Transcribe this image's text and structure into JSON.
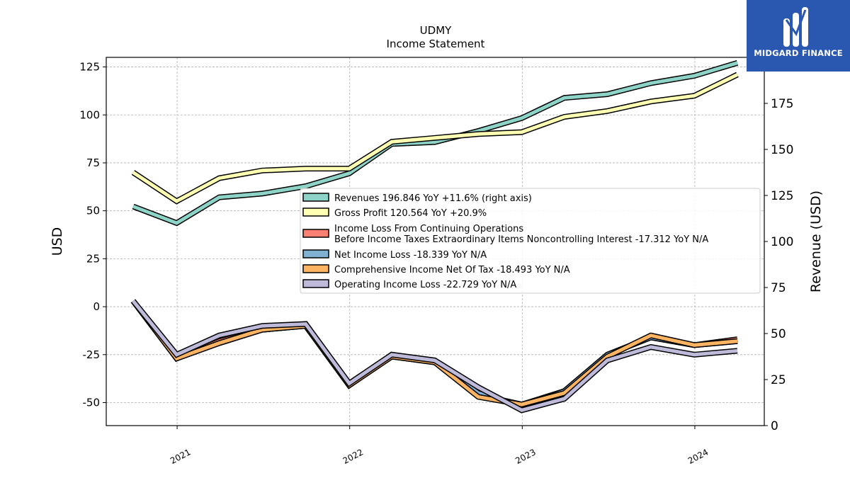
{
  "brand": {
    "name": "MIDGARD FINANCE",
    "color": "#2a57b0"
  },
  "chart_data": {
    "type": "line",
    "title": "UDMY",
    "subtitle": "Income Statement",
    "ylabel": "USD",
    "ylabel_right": "Revenue (USD)",
    "x": [
      "2020-09-30",
      "2020-12-31",
      "2021-03-31",
      "2021-06-30",
      "2021-09-30",
      "2021-12-31",
      "2022-03-31",
      "2022-06-30",
      "2022-09-30",
      "2022-12-31",
      "2023-03-31",
      "2023-06-30",
      "2023-09-30",
      "2023-12-31",
      "2024-03-31"
    ],
    "xticks": [
      "2021",
      "2022",
      "2023",
      "2024"
    ],
    "ylim": [
      -62,
      130
    ],
    "ylim_right": [
      0,
      200
    ],
    "yticks": [
      -50,
      -25,
      0,
      25,
      50,
      75,
      100,
      125
    ],
    "yticks_right": [
      0,
      25,
      50,
      75,
      100,
      125,
      150,
      175
    ],
    "grid": true,
    "legend_position": "center-right",
    "series": [
      {
        "name": "Revenues",
        "legend": "Revenues  196.846 YoY +11.6% (right axis)",
        "axis": "right",
        "color": "#8dd3c7",
        "values": [
          119,
          110,
          124,
          126,
          130,
          137,
          153,
          154,
          160,
          167,
          178,
          180,
          186,
          190,
          197
        ]
      },
      {
        "name": "Gross Profit",
        "legend": "Gross Profit  120.564 YoY +20.9%",
        "axis": "left",
        "color": "#ffffb3",
        "values": [
          70,
          55,
          67,
          71,
          72,
          72,
          86,
          88,
          90,
          91,
          99,
          102,
          107,
          110,
          121
        ]
      },
      {
        "name": "Income Loss From Continuing Operations Before Income Taxes Extraordinary Items Noncontrolling Interest",
        "legend": [
          "Income Loss From Continuing Operations",
          "Before Income Taxes Extraordinary Items Noncontrolling Interest  -17.312 YoY N/A"
        ],
        "axis": "left",
        "color": "#fb8072",
        "values": [
          3,
          -27,
          -18,
          -12,
          -10,
          -41,
          -25,
          -29,
          -46,
          -51,
          -44,
          -25,
          -16,
          -20,
          -17
        ]
      },
      {
        "name": "Net Income Loss",
        "legend": "Net Income Loss  -18.339 YoY N/A",
        "axis": "left",
        "color": "#80b1d3",
        "values": [
          3,
          -27,
          -19,
          -12,
          -10,
          -41,
          -26,
          -29,
          -45,
          -52,
          -44,
          -25,
          -16,
          -20,
          -18
        ]
      },
      {
        "name": "Comprehensive Income Net Of Tax",
        "legend": "Comprehensive Income Net Of Tax  -18.493 YoY N/A",
        "axis": "left",
        "color": "#fdb462",
        "values": [
          3,
          -27,
          -19,
          -12,
          -10,
          -41,
          -26,
          -29,
          -47,
          -51,
          -45,
          -26,
          -15,
          -20,
          -18
        ]
      },
      {
        "name": "Operating Income Loss",
        "legend": "Operating Income Loss  -22.729 YoY N/A",
        "axis": "left",
        "color": "#bebada",
        "values": [
          3,
          -25,
          -15,
          -10,
          -9,
          -40,
          -25,
          -28,
          -42,
          -54,
          -48,
          -28,
          -21,
          -25,
          -23
        ]
      }
    ]
  }
}
